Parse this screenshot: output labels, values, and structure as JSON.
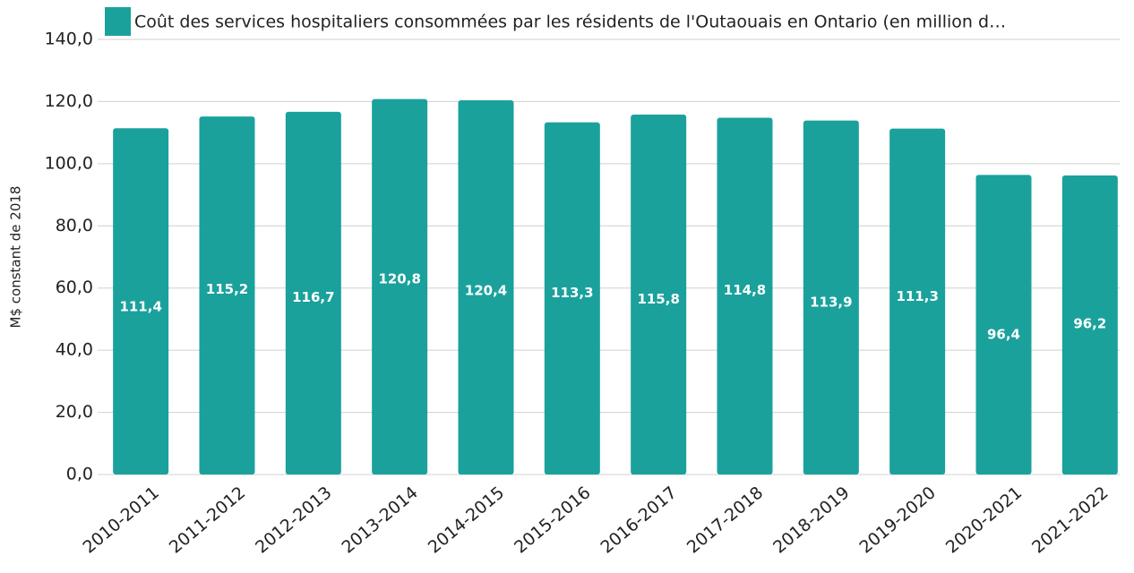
{
  "chart_data": {
    "type": "bar",
    "y_label": "M$ constant de 2018",
    "categories": [
      "2010-2011",
      "2011-2012",
      "2012-2013",
      "2013-2014",
      "2014-2015",
      "2015-2016",
      "2016-2017",
      "2017-2018",
      "2018-2019",
      "2019-2020",
      "2020-2021",
      "2021-2022"
    ],
    "series": [
      {
        "name": "Coût des services hospitaliers consommées par les résidents de l'Outaouais en Ontario (en million d…",
        "color": "#1ba19c",
        "values": [
          111.4,
          115.2,
          116.7,
          120.8,
          120.4,
          113.3,
          115.8,
          114.8,
          113.9,
          111.3,
          96.4,
          96.2
        ],
        "value_labels": [
          "111,4",
          "115,2",
          "116,7",
          "120,8",
          "120,4",
          "113,3",
          "115,8",
          "114,8",
          "113,9",
          "111,3",
          "96,4",
          "96,2"
        ]
      }
    ],
    "ylim": [
      0,
      140
    ],
    "yticks": [
      {
        "value": 0,
        "label": "0,0"
      },
      {
        "value": 20,
        "label": "20,0"
      },
      {
        "value": 40,
        "label": "40,0"
      },
      {
        "value": 60,
        "label": "60,0"
      },
      {
        "value": 80,
        "label": "80,0"
      },
      {
        "value": 100,
        "label": "100,0"
      },
      {
        "value": 120,
        "label": "120,0"
      },
      {
        "value": 140,
        "label": "140,0"
      }
    ],
    "grid": true,
    "legend": "top"
  }
}
